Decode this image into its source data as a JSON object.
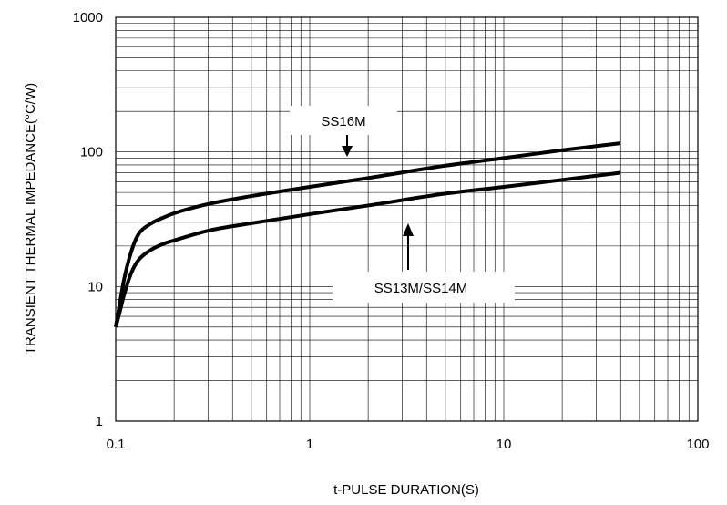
{
  "chart_data": {
    "type": "line",
    "title": "",
    "xlabel": "t-PULSE DURATION(S)",
    "ylabel": "TRANSIENT THERMAL IMPEDANCE(°C/W)",
    "xscale": "log",
    "yscale": "log",
    "xlim": [
      0.1,
      100
    ],
    "ylim": [
      1,
      1000
    ],
    "grid": true,
    "x_ticks": [
      "0.1",
      "1",
      "10",
      "100"
    ],
    "y_ticks": [
      "1",
      "10",
      "100",
      "1000"
    ],
    "series": [
      {
        "name": "SS16M",
        "x": [
          0.1,
          0.105,
          0.11,
          0.12,
          0.13,
          0.15,
          0.18,
          0.2,
          0.3,
          0.5,
          1,
          2,
          5,
          10,
          20,
          40
        ],
        "y": [
          5,
          7.5,
          11,
          18,
          24,
          29,
          33,
          35,
          41,
          47,
          55,
          64,
          79,
          90,
          103,
          116
        ]
      },
      {
        "name": "SS13M/SS14M",
        "x": [
          0.1,
          0.105,
          0.11,
          0.12,
          0.13,
          0.15,
          0.18,
          0.2,
          0.3,
          0.5,
          1,
          2,
          5,
          10,
          20,
          40
        ],
        "y": [
          5,
          6.5,
          8.5,
          12.5,
          15.5,
          18.5,
          21,
          22,
          26,
          29.5,
          34.5,
          40,
          49,
          55,
          62,
          70
        ]
      }
    ],
    "annotations": [
      {
        "text": "SS16M",
        "arrow": "down"
      },
      {
        "text": "SS13M/SS14M",
        "arrow": "up"
      }
    ]
  }
}
